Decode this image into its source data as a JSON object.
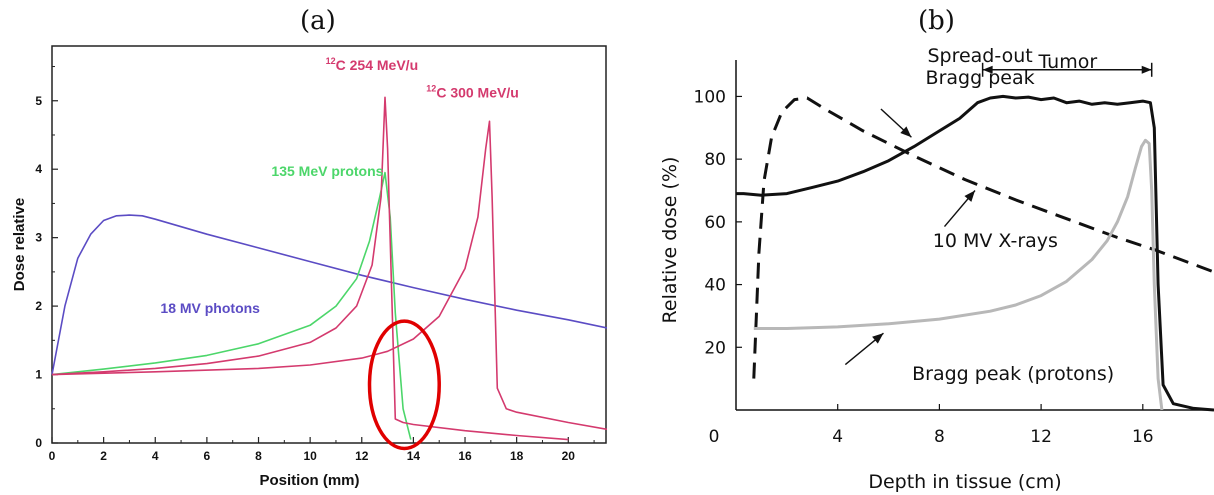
{
  "panels": {
    "a": "(a)",
    "b": "(b)"
  },
  "chart_data": [
    {
      "type": "line",
      "xlabel": "Position (mm)",
      "ylabel": "Dose relative",
      "xlim": [
        0,
        21.5
      ],
      "ylim": [
        0,
        5.8
      ],
      "xticks": [
        0,
        2,
        4,
        6,
        8,
        10,
        12,
        14,
        16,
        18,
        20
      ],
      "yticks": [
        0,
        1,
        2,
        3,
        4,
        5
      ],
      "colors": {
        "photons": "#5b4cc4",
        "protons": "#4cd66a",
        "carbon": "#d43a6e",
        "highlight": "#e00000"
      },
      "series": [
        {
          "name": "18 MV photons",
          "color": "#5b4cc4",
          "x": [
            0,
            0.5,
            1,
            1.5,
            2,
            2.5,
            3,
            3.5,
            4,
            6,
            8,
            10,
            12,
            14,
            16,
            18,
            20,
            21.5
          ],
          "y": [
            1.0,
            2.0,
            2.7,
            3.05,
            3.25,
            3.32,
            3.33,
            3.32,
            3.27,
            3.05,
            2.85,
            2.65,
            2.45,
            2.27,
            2.1,
            1.94,
            1.8,
            1.68
          ]
        },
        {
          "name": "135 MeV protons",
          "color": "#4cd66a",
          "x": [
            0,
            2,
            4,
            6,
            8,
            10,
            11,
            11.8,
            12.3,
            12.7,
            12.9,
            13.1,
            13.3,
            13.6,
            13.9
          ],
          "y": [
            1.0,
            1.08,
            1.17,
            1.28,
            1.45,
            1.72,
            2.0,
            2.4,
            2.95,
            3.6,
            3.95,
            3.3,
            1.9,
            0.5,
            0.05
          ]
        },
        {
          "name": "12C 254 MeV/u",
          "color": "#d43a6e",
          "x": [
            0,
            2,
            4,
            6,
            8,
            10,
            11,
            11.8,
            12.4,
            12.75,
            12.9,
            13.0,
            13.15,
            13.3,
            13.6,
            14,
            16,
            18,
            20
          ],
          "y": [
            1.0,
            1.04,
            1.09,
            1.16,
            1.27,
            1.47,
            1.68,
            2.0,
            2.6,
            3.6,
            5.05,
            4.3,
            2.3,
            0.35,
            0.3,
            0.27,
            0.18,
            0.11,
            0.05
          ]
        },
        {
          "name": "12C 300 MeV/u",
          "color": "#d43a6e",
          "x": [
            0,
            4,
            8,
            10,
            12,
            13,
            14,
            15,
            16,
            16.5,
            16.8,
            16.95,
            17.05,
            17.25,
            17.6,
            18,
            20,
            21.5
          ],
          "y": [
            1.0,
            1.04,
            1.09,
            1.14,
            1.24,
            1.34,
            1.52,
            1.85,
            2.55,
            3.3,
            4.3,
            4.7,
            3.6,
            0.8,
            0.5,
            0.45,
            0.3,
            0.2
          ]
        }
      ],
      "annotations": [
        {
          "text": "18 MV  photons",
          "x": 4.2,
          "y": 1.9,
          "color": "#5b4cc4"
        },
        {
          "text": "135 MeV protons",
          "x": 8.5,
          "y": 3.9,
          "color": "#4cd66a"
        },
        {
          "sup": "12",
          "text": "C 254 MeV/u",
          "x": 10.6,
          "y": 5.45,
          "color": "#d43a6e"
        },
        {
          "sup": "12",
          "text": "C 300 MeV/u",
          "x": 14.5,
          "y": 5.05,
          "color": "#d43a6e"
        }
      ],
      "highlight_ellipse": {
        "cx": 13.65,
        "cy": 0.85,
        "rx": 1.35,
        "ry": 0.93,
        "color": "#e00000"
      }
    },
    {
      "type": "line",
      "xlabel": "Depth in tissue (cm)",
      "ylabel": "Relative dose (%)",
      "xlim": [
        0,
        18.8
      ],
      "ylim": [
        0,
        118
      ],
      "xticks": [
        0,
        4,
        8,
        12,
        16
      ],
      "yticks": [
        20,
        40,
        60,
        80,
        100
      ],
      "series": [
        {
          "name": "Spread-out Bragg peak",
          "color": "#111111",
          "style": "solid",
          "x": [
            0,
            0.3,
            1,
            2,
            3,
            4,
            5,
            6,
            7,
            8,
            8.8,
            9.5,
            10,
            10.5,
            11,
            11.5,
            12,
            12.5,
            13,
            13.5,
            14,
            14.5,
            15,
            15.5,
            16,
            16.3,
            16.45,
            16.6,
            16.8,
            17.2,
            18,
            18.8
          ],
          "y": [
            69,
            69,
            68.5,
            69,
            71,
            73,
            76,
            79.5,
            84,
            89,
            93,
            98,
            99.5,
            100,
            99.5,
            99.8,
            99,
            99.5,
            98,
            98.5,
            97.5,
            98,
            97.5,
            98,
            98.5,
            98,
            90,
            40,
            8,
            2,
            0.5,
            0
          ]
        },
        {
          "name": "10 MV X-rays",
          "color": "#111111",
          "style": "dashed",
          "x": [
            0.7,
            0.9,
            1.1,
            1.4,
            1.8,
            2.3,
            2.8,
            3.5,
            5,
            7,
            9,
            11,
            13,
            15,
            16.5,
            18.8
          ],
          "y": [
            10,
            50,
            73,
            87,
            95,
            99,
            99.5,
            96,
            89,
            81,
            73.5,
            67,
            61,
            55,
            51,
            44
          ]
        },
        {
          "name": "Bragg peak (protons)",
          "color": "#b8b8b8",
          "style": "solid",
          "x": [
            0.7,
            2,
            4,
            6,
            8,
            10,
            11,
            12,
            13,
            14,
            14.6,
            15,
            15.4,
            15.7,
            15.95,
            16.1,
            16.25,
            16.35,
            16.45,
            16.6,
            16.75
          ],
          "y": [
            26,
            26,
            26.5,
            27.5,
            29,
            31.5,
            33.5,
            36.5,
            41,
            48,
            54,
            60,
            68,
            77,
            84,
            86,
            85,
            70,
            40,
            10,
            0
          ]
        }
      ],
      "annotations": [
        {
          "text": "Spread-out",
          "x": 9.6,
          "y": 111
        },
        {
          "text": "Bragg peak",
          "x": 9.6,
          "y": 104
        },
        {
          "text": "Tumor",
          "x": 13.05,
          "y": 109
        },
        {
          "text": "10 MV X-rays",
          "x": 10.2,
          "y": 52
        },
        {
          "text": "Bragg peak (protons)",
          "x": 10.9,
          "y": 9.5
        }
      ]
    }
  ]
}
